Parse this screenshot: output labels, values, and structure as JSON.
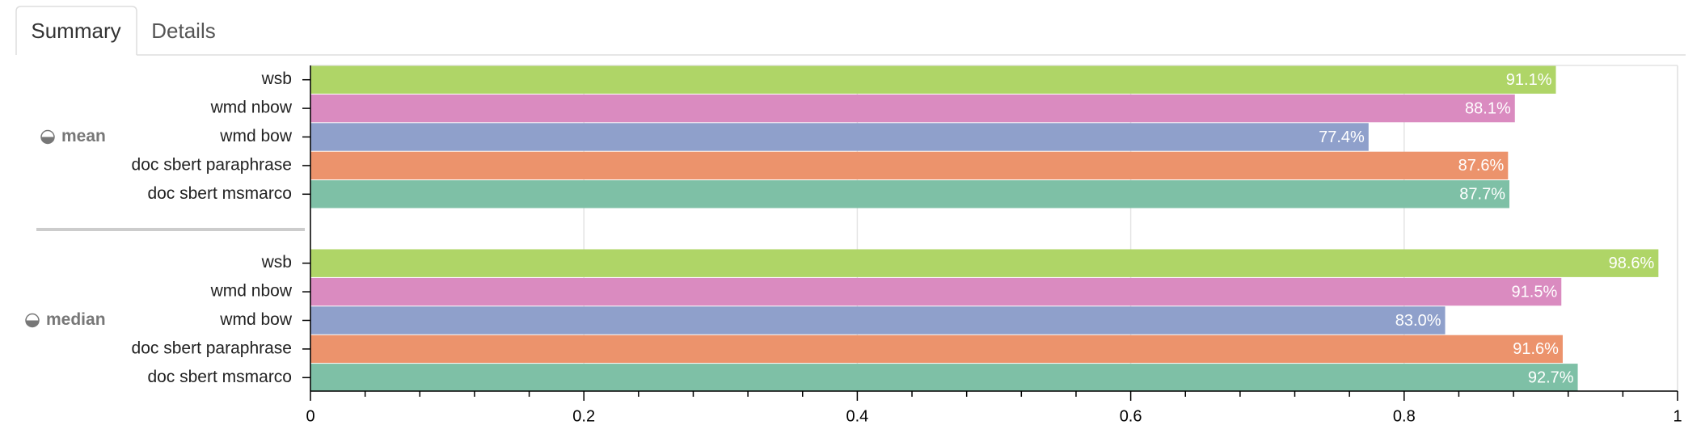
{
  "tabs": [
    "Summary",
    "Details"
  ],
  "chart_data": {
    "type": "hbar-grouped",
    "categories": [
      "mean",
      "median"
    ],
    "series": [
      {
        "name": "wsb",
        "color": "#afd567",
        "values": [
          0.911,
          0.986
        ],
        "value_labels": [
          "91.1%",
          "98.6%"
        ]
      },
      {
        "name": "wmd nbow",
        "color": "#da8bc0",
        "values": [
          0.881,
          0.915
        ],
        "value_labels": [
          "88.1%",
          "91.5%"
        ]
      },
      {
        "name": "wmd bow",
        "color": "#8fa0cb",
        "values": [
          0.774,
          0.83
        ],
        "value_labels": [
          "77.4%",
          "83.0%"
        ]
      },
      {
        "name": "doc sbert paraphrase",
        "color": "#ec936c",
        "values": [
          0.876,
          0.916
        ],
        "value_labels": [
          "87.6%",
          "91.6%"
        ]
      },
      {
        "name": "doc sbert msmarco",
        "color": "#7ec0a6",
        "values": [
          0.877,
          0.927
        ],
        "value_labels": [
          "87.7%",
          "92.7%"
        ]
      }
    ],
    "xlim": [
      0,
      1
    ],
    "xticks": [
      0,
      0.2,
      0.4,
      0.6,
      0.8,
      1
    ],
    "minor_xticks": [
      0.04,
      0.08,
      0.12,
      0.16,
      0.24,
      0.28,
      0.32,
      0.36,
      0.44,
      0.48,
      0.52,
      0.56,
      0.64,
      0.68,
      0.72,
      0.76,
      0.84,
      0.88,
      0.92,
      0.96
    ],
    "grid": true
  }
}
